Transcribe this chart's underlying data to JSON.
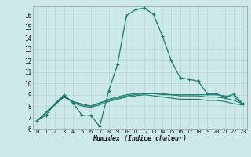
{
  "xlabel": "Humidex (Indice chaleur)",
  "background_color": "#cce8e8",
  "grid_color": "#b8d8d8",
  "line_color": "#1a7a6e",
  "x_ticks": [
    0,
    1,
    2,
    3,
    4,
    5,
    6,
    7,
    8,
    9,
    10,
    11,
    12,
    13,
    14,
    15,
    16,
    17,
    18,
    19,
    20,
    21,
    22,
    23
  ],
  "y_ticks": [
    6,
    7,
    8,
    9,
    10,
    11,
    12,
    13,
    14,
    15,
    16
  ],
  "ylim": [
    6.0,
    16.8
  ],
  "xlim": [
    -0.5,
    23.5
  ],
  "line1_x": [
    0,
    1,
    2,
    3,
    4,
    5,
    6,
    7,
    8,
    9,
    10,
    11,
    12,
    13,
    14,
    15,
    16,
    17,
    18,
    19,
    20,
    21,
    22,
    23
  ],
  "line1_y": [
    6.7,
    7.2,
    8.2,
    9.0,
    8.3,
    7.2,
    7.2,
    6.2,
    9.3,
    11.7,
    16.0,
    16.5,
    16.65,
    16.1,
    14.2,
    12.0,
    10.5,
    10.35,
    10.2,
    9.1,
    9.1,
    8.8,
    9.05,
    8.2
  ],
  "line2_x": [
    0,
    2,
    3,
    4,
    5,
    6,
    7,
    8,
    9,
    10,
    11,
    12,
    13,
    14,
    15,
    16,
    17,
    18,
    19,
    20,
    21,
    22,
    23
  ],
  "line2_y": [
    6.7,
    8.2,
    8.8,
    8.4,
    8.2,
    8.0,
    8.3,
    8.5,
    8.7,
    8.9,
    9.0,
    9.1,
    9.1,
    9.1,
    9.0,
    8.9,
    8.9,
    8.9,
    8.8,
    8.8,
    8.7,
    8.5,
    8.2
  ],
  "line3_x": [
    0,
    2,
    3,
    4,
    5,
    6,
    7,
    8,
    9,
    10,
    11,
    12,
    13,
    14,
    15,
    16,
    17,
    18,
    19,
    20,
    21,
    22,
    23
  ],
  "line3_y": [
    6.7,
    8.1,
    8.8,
    8.4,
    8.1,
    8.0,
    8.2,
    8.6,
    8.8,
    9.0,
    9.1,
    9.1,
    9.1,
    9.0,
    9.0,
    9.0,
    9.0,
    9.0,
    9.0,
    9.0,
    8.9,
    8.8,
    8.2
  ],
  "line4_x": [
    0,
    2,
    3,
    4,
    5,
    6,
    7,
    8,
    9,
    10,
    11,
    12,
    13,
    14,
    15,
    16,
    17,
    18,
    19,
    20,
    21,
    22,
    23
  ],
  "line4_y": [
    6.7,
    8.2,
    8.9,
    8.3,
    8.0,
    7.9,
    8.1,
    8.4,
    8.6,
    8.8,
    8.9,
    9.0,
    8.9,
    8.8,
    8.7,
    8.6,
    8.6,
    8.6,
    8.5,
    8.5,
    8.4,
    8.2,
    8.1
  ]
}
